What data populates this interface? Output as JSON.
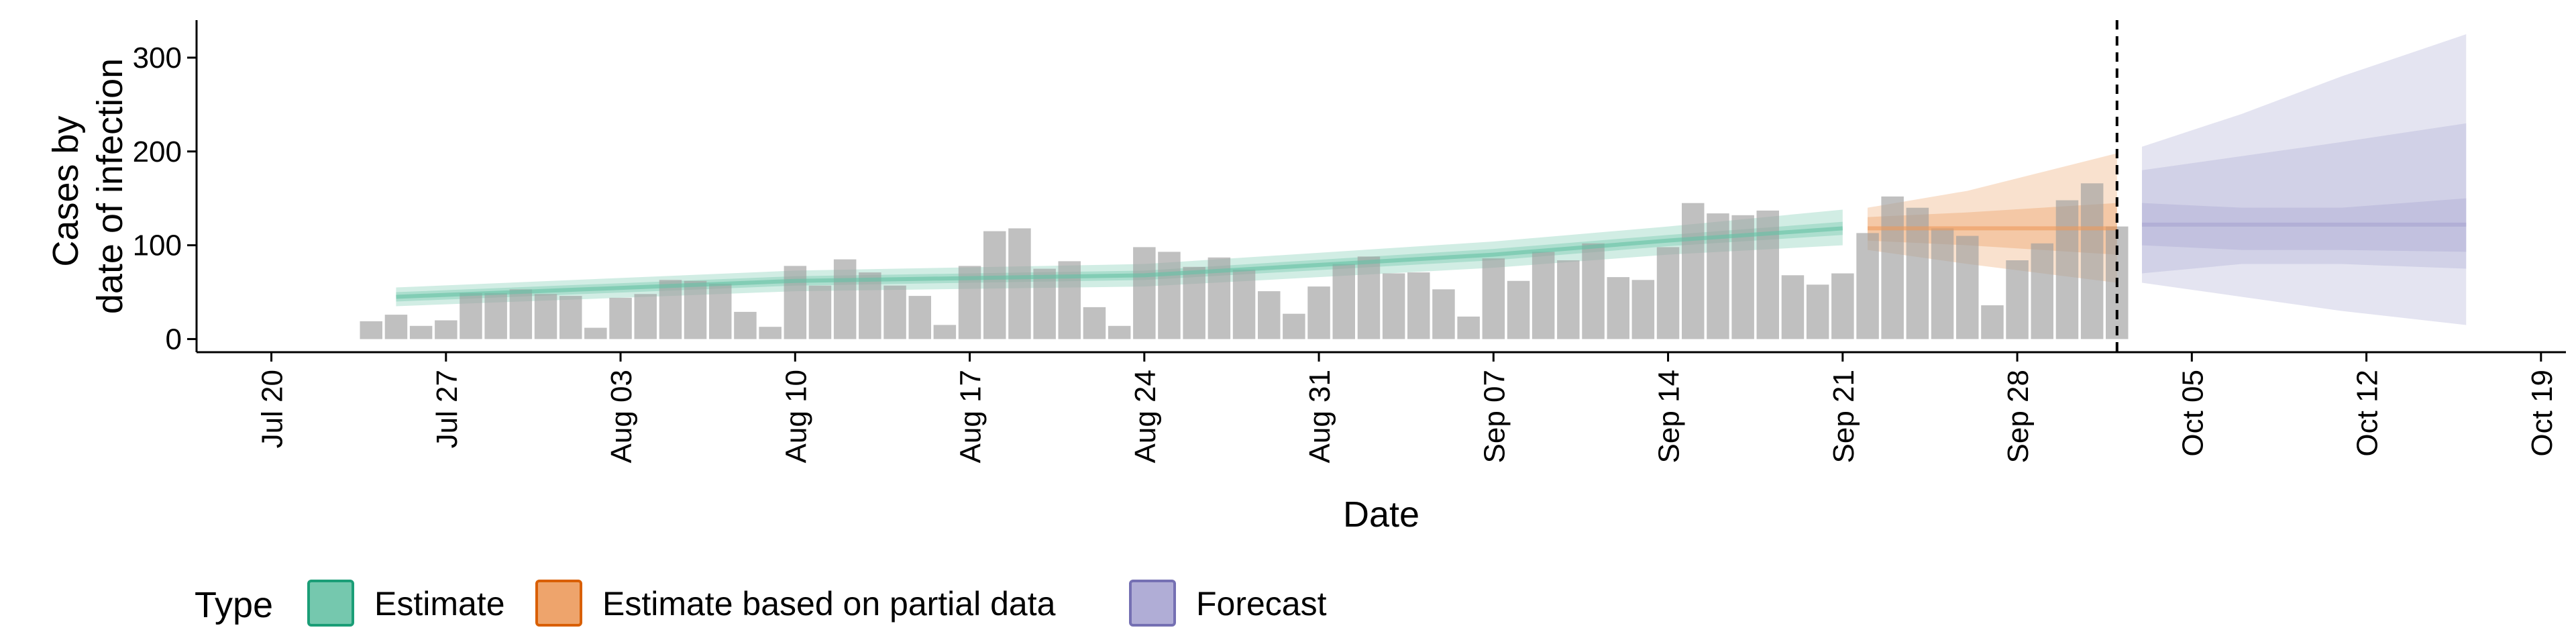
{
  "chart_data": {
    "type": "bar",
    "title": "",
    "xlabel": "Date",
    "ylabel": [
      "Cases by",
      "date of infection"
    ],
    "xlim": [
      "2020-07-17",
      "2020-10-20"
    ],
    "ylim": [
      -14,
      340
    ],
    "x_ticks": [
      "2020-07-20",
      "2020-07-27",
      "2020-08-03",
      "2020-08-10",
      "2020-08-17",
      "2020-08-24",
      "2020-08-31",
      "2020-09-07",
      "2020-09-14",
      "2020-09-21",
      "2020-09-28",
      "2020-10-05",
      "2020-10-12",
      "2020-10-19"
    ],
    "x_tick_labels": [
      "Jul 20",
      "Jul 27",
      "Aug 03",
      "Aug 10",
      "Aug 17",
      "Aug 24",
      "Aug 31",
      "Sep 07",
      "Sep 14",
      "Sep 21",
      "Sep 28",
      "Oct 05",
      "Oct 12",
      "Oct 19"
    ],
    "y_ticks": [
      0,
      100,
      200,
      300
    ],
    "y_tick_labels": [
      "0",
      "100",
      "200",
      "300"
    ],
    "grid": false,
    "forecast_date": "2020-10-02",
    "reported_cases": {
      "color": "#9e9e9e",
      "start_date": "2020-07-24",
      "values": [
        19,
        26,
        14,
        20,
        49,
        49,
        53,
        48,
        46,
        12,
        44,
        48,
        63,
        62,
        59,
        29,
        13,
        78,
        57,
        85,
        71,
        57,
        46,
        15,
        78,
        115,
        118,
        75,
        83,
        34,
        14,
        98,
        93,
        77,
        87,
        74,
        51,
        27,
        56,
        80,
        88,
        70,
        71,
        53,
        24,
        86,
        62,
        93,
        84,
        102,
        66,
        63,
        98,
        145,
        134,
        132,
        137,
        68,
        58,
        70,
        113,
        152,
        140,
        118,
        110,
        36,
        84,
        102,
        148,
        166,
        120
      ]
    },
    "series": [
      {
        "name": "Estimate",
        "color": "#1b9e77",
        "fill": "#66c2a5",
        "x": [
          "2020-07-25",
          "2020-08-10",
          "2020-08-24",
          "2020-09-07",
          "2020-09-14",
          "2020-09-21"
        ],
        "median": [
          45,
          62,
          68,
          90,
          105,
          118
        ],
        "inner": [
          [
            40,
            50
          ],
          [
            57,
            67
          ],
          [
            63,
            73
          ],
          [
            84,
            96
          ],
          [
            99,
            111
          ],
          [
            111,
            125
          ]
        ],
        "outer": [
          [
            35,
            55
          ],
          [
            51,
            73
          ],
          [
            56,
            80
          ],
          [
            76,
            104
          ],
          [
            90,
            120
          ],
          [
            100,
            138
          ]
        ]
      },
      {
        "name": "Estimate based on partial data",
        "color": "#d95f02",
        "fill": "#ec9a5c",
        "x": [
          "2020-09-22",
          "2020-09-26",
          "2020-09-29",
          "2020-10-02"
        ],
        "median": [
          118,
          118,
          118,
          118
        ],
        "inner": [
          [
            105,
            130
          ],
          [
            100,
            135
          ],
          [
            95,
            140
          ],
          [
            90,
            145
          ]
        ],
        "outer": [
          [
            95,
            140
          ],
          [
            80,
            158
          ],
          [
            70,
            178
          ],
          [
            60,
            198
          ]
        ]
      },
      {
        "name": "Forecast",
        "color": "#7570b3",
        "fill": "#a7a4d1",
        "x": [
          "2020-10-03",
          "2020-10-07",
          "2020-10-11",
          "2020-10-16"
        ],
        "median": [
          122,
          122,
          122,
          122
        ],
        "inner": [
          [
            100,
            145
          ],
          [
            95,
            140
          ],
          [
            95,
            140
          ],
          [
            93,
            150
          ]
        ],
        "ring_outer": [
          [
            70,
            180
          ],
          [
            80,
            195
          ],
          [
            80,
            210
          ],
          [
            75,
            230
          ]
        ],
        "outer": [
          [
            60,
            205
          ],
          [
            45,
            240
          ],
          [
            30,
            280
          ],
          [
            15,
            325
          ]
        ]
      }
    ],
    "legend": {
      "position": "bottom-left",
      "title": "Type",
      "items": [
        "Estimate",
        "Estimate based on partial data",
        "Forecast"
      ]
    }
  }
}
